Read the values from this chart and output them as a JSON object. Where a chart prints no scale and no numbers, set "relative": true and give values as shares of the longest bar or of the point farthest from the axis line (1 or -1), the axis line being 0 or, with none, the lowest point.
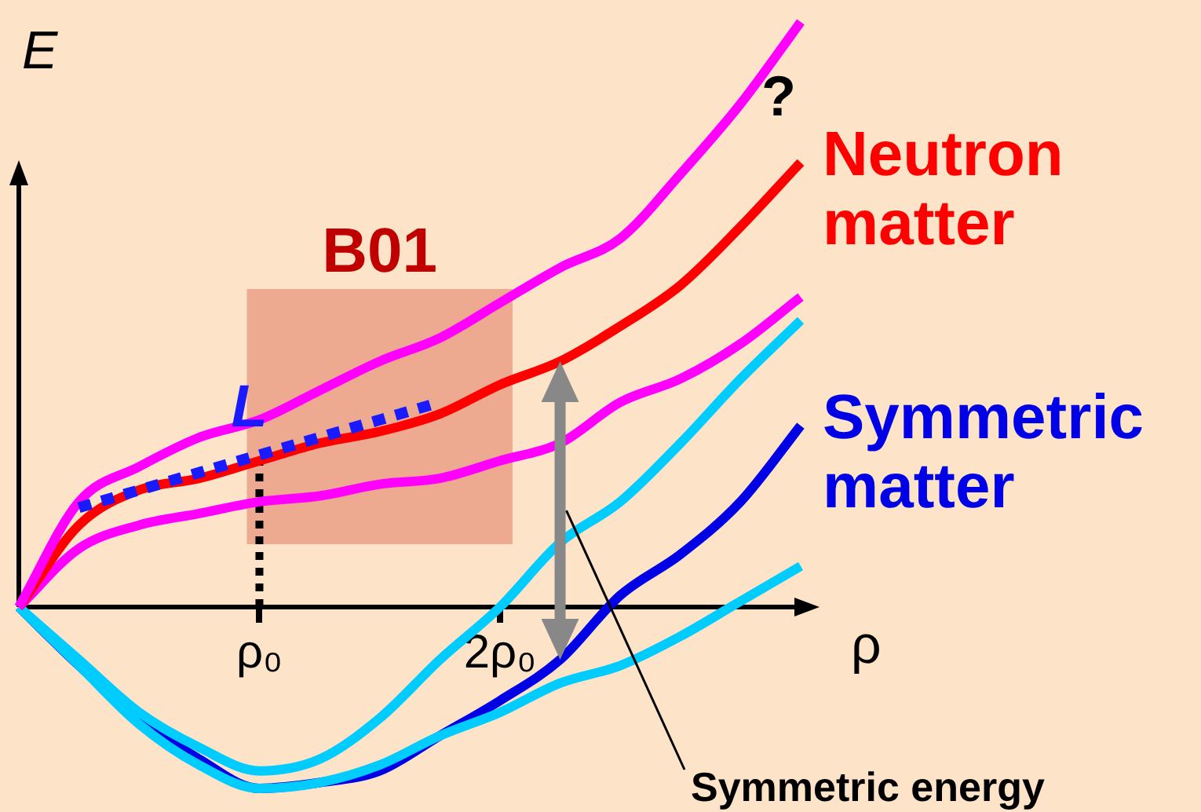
{
  "chart_data": {
    "type": "line",
    "xlabel": "ρ",
    "ylabel": "E",
    "relative": true,
    "categories": [
      null,
      null,
      null,
      null,
      "ρ₀",
      null,
      null,
      null,
      "2ρ₀",
      null,
      null,
      null,
      null,
      null
    ],
    "legend": false,
    "grid": false,
    "marker": "none",
    "bands": [
      {
        "axis": "x",
        "from": "ρ₀",
        "to": "2ρ₀",
        "label": "B01",
        "color": "#e8967f"
      }
    ],
    "ref_lines": [
      {
        "axis": "x",
        "value": "ρ₀",
        "line_style": "dotted",
        "color": "#000000"
      }
    ],
    "annotations": [
      "?",
      "Symmetric energy"
    ],
    "series": [
      {
        "color": "#ff00ff",
        "values": [
          0,
          0.18,
          0.24,
          0.29,
          0.32,
          0.37,
          0.42,
          0.46,
          0.52,
          0.58,
          0.63,
          0.74,
          0.86,
          1.0
        ]
      },
      {
        "name": "Neutron matter",
        "color": "#ff0000",
        "values": [
          0,
          0.14,
          0.2,
          0.22,
          0.25,
          0.28,
          0.3,
          0.33,
          0.38,
          0.42,
          0.48,
          0.55,
          0.65,
          0.76
        ]
      },
      {
        "color": "#ff00ff",
        "values": [
          0,
          0.1,
          0.14,
          0.16,
          0.18,
          0.19,
          0.21,
          0.22,
          0.25,
          0.28,
          0.35,
          0.39,
          0.45,
          0.53
        ]
      },
      {
        "color": "#00ccff",
        "values": [
          0,
          -0.09,
          -0.18,
          -0.24,
          -0.28,
          -0.26,
          -0.19,
          -0.09,
          0,
          0.11,
          0.18,
          0.28,
          0.39,
          0.49
        ]
      },
      {
        "color": "#00ccff",
        "values": [
          0,
          -0.1,
          -0.2,
          -0.27,
          -0.31,
          -0.3,
          -0.27,
          -0.22,
          -0.18,
          -0.13,
          -0.1,
          -0.05,
          0.01,
          0.07
        ]
      },
      {
        "name": "Symmetric matter",
        "color": "#0000e6",
        "values": [
          0,
          -0.1,
          -0.19,
          -0.26,
          -0.31,
          -0.3,
          -0.28,
          -0.22,
          -0.16,
          -0.09,
          0.02,
          0.09,
          0.18,
          0.31
        ]
      },
      {
        "name": "L",
        "line_style": "dotted",
        "color": "#1a1aff",
        "values": [
          null,
          0.17,
          0.2,
          0.23,
          0.26,
          0.29,
          0.32,
          0.35,
          null,
          null,
          null,
          null,
          null,
          null
        ]
      }
    ]
  }
}
